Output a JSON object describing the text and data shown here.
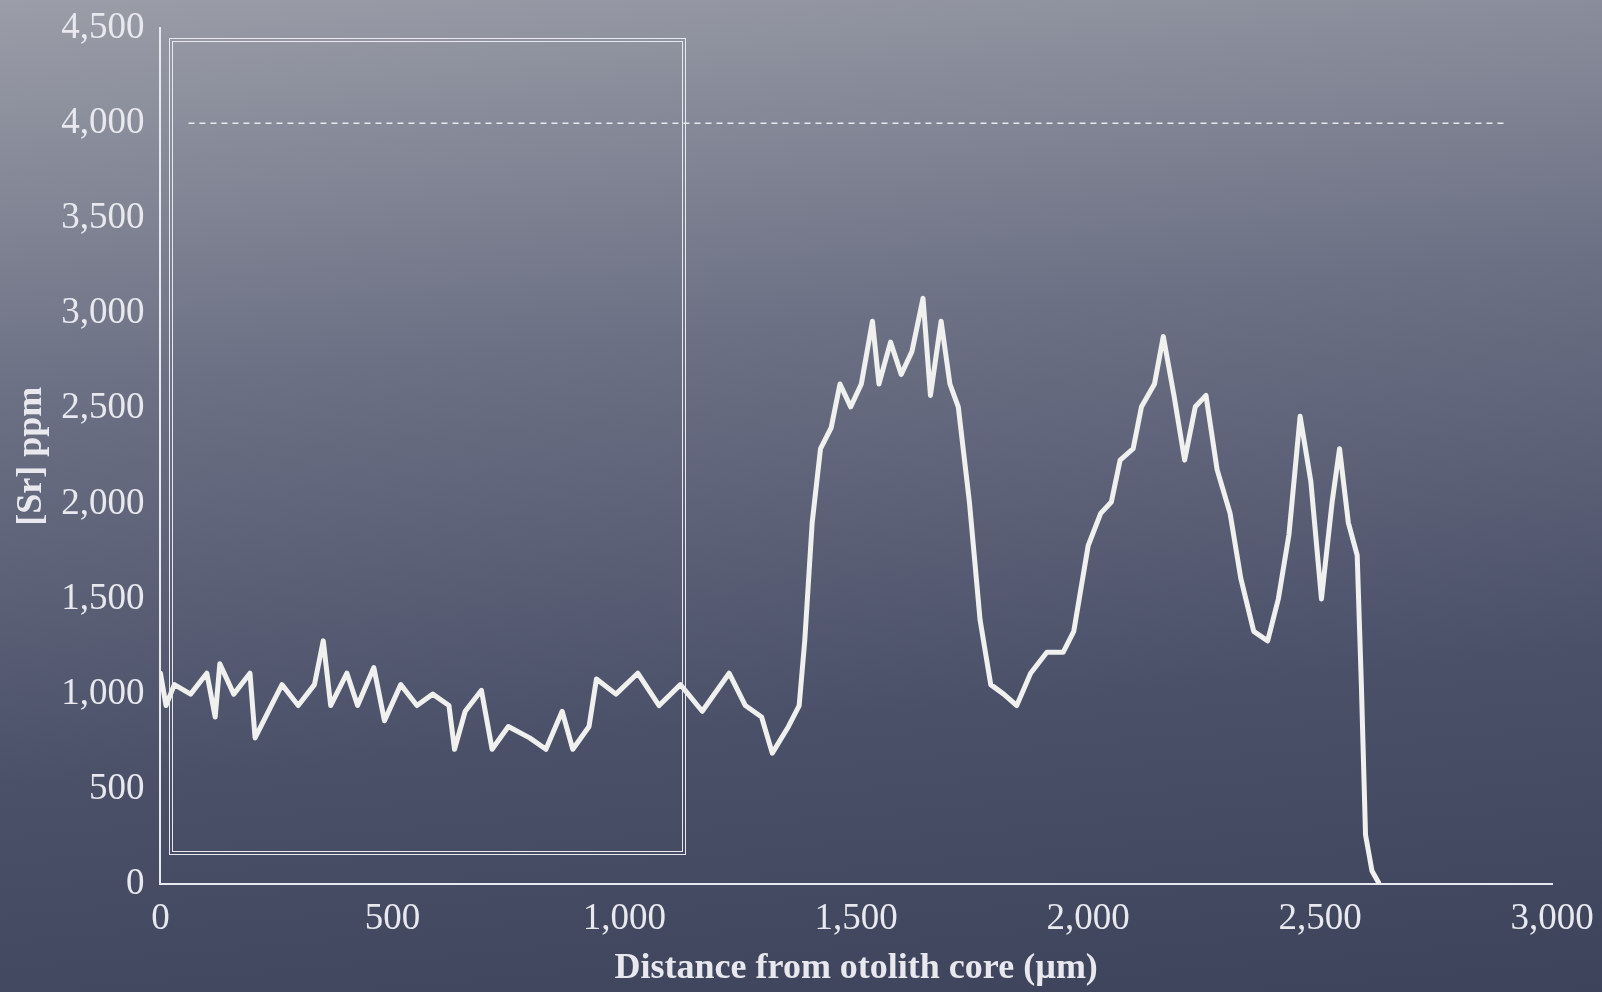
{
  "chart_data": {
    "type": "line",
    "xlabel": "Distance from otolith core (µm)",
    "ylabel": "[Sr] ppm",
    "xlim": [
      0,
      3000
    ],
    "xticks": [
      0,
      500,
      {
        "value": 1000,
        "label": "1,000"
      },
      {
        "value": 1500,
        "label": "1,500"
      },
      {
        "value": 2000,
        "label": "2,000"
      },
      {
        "value": 2500,
        "label": "2,500"
      },
      {
        "value": 3000,
        "label": "3,000"
      }
    ],
    "ylim": [
      0,
      4500
    ],
    "yticks": [
      0,
      500,
      {
        "value": 1000,
        "label": "1,000"
      },
      {
        "value": 1500,
        "label": "1,500"
      },
      {
        "value": 2000,
        "label": "2,000"
      },
      {
        "value": 2500,
        "label": "2,500"
      },
      {
        "value": 3000,
        "label": "3,000"
      },
      {
        "value": 3500,
        "label": "3,500"
      },
      {
        "value": 4000,
        "label": "4,000"
      },
      {
        "value": 4500,
        "label": "4,500"
      }
    ],
    "grid": false,
    "legend": false,
    "marker": "none",
    "line_style": "solid",
    "ref_lines": [
      {
        "axis": "y",
        "value": 4000,
        "color": "#e8e8ee",
        "line_style": "dashed"
      }
    ],
    "series": [
      {
        "color": "#f0f0ee",
        "x": [
          0,
          12,
          30,
          65,
          100,
          118,
          128,
          158,
          193,
          204,
          239,
          262,
          297,
          332,
          351,
          367,
          402,
          425,
          460,
          483,
          518,
          553,
          587,
          622,
          634,
          657,
          692,
          715,
          750,
          796,
          831,
          866,
          889,
          924,
          940,
          982,
          1029,
          1075,
          1121,
          1168,
          1226,
          1261,
          1296,
          1319,
          1354,
          1377,
          1389,
          1405,
          1423,
          1446,
          1465,
          1488,
          1511,
          1535,
          1549,
          1574,
          1597,
          1620,
          1644,
          1660,
          1683,
          1702,
          1720,
          1744,
          1767,
          1790,
          1818,
          1846,
          1876,
          1911,
          1946,
          1969,
          2000,
          2027,
          2050,
          2069,
          2097,
          2115,
          2143,
          2162,
          2185,
          2208,
          2231,
          2254,
          2278,
          2306,
          2329,
          2357,
          2387,
          2410,
          2433,
          2457,
          2480,
          2503,
          2526,
          2542,
          2561,
          2580,
          2589,
          2598,
          2612,
          2626
        ],
        "values": [
          1110,
          940,
          1050,
          1000,
          1110,
          880,
          1160,
          1000,
          1110,
          770,
          940,
          1050,
          940,
          1050,
          1280,
          940,
          1110,
          940,
          1140,
          860,
          1050,
          940,
          1000,
          940,
          710,
          910,
          1020,
          710,
          830,
          770,
          710,
          910,
          710,
          830,
          1080,
          1000,
          1110,
          940,
          1050,
          910,
          1110,
          940,
          880,
          690,
          830,
          940,
          1280,
          1900,
          2290,
          2400,
          2630,
          2510,
          2630,
          2960,
          2630,
          2850,
          2680,
          2800,
          3080,
          2570,
          2960,
          2630,
          2510,
          2010,
          1390,
          1050,
          1000,
          940,
          1110,
          1220,
          1220,
          1330,
          1780,
          1950,
          2010,
          2230,
          2290,
          2510,
          2630,
          2880,
          2570,
          2230,
          2510,
          2570,
          2180,
          1950,
          1610,
          1330,
          1280,
          1500,
          1840,
          2460,
          2120,
          1500,
          2010,
          2290,
          1900,
          1730,
          1050,
          260,
          70,
          10
        ]
      }
    ]
  }
}
